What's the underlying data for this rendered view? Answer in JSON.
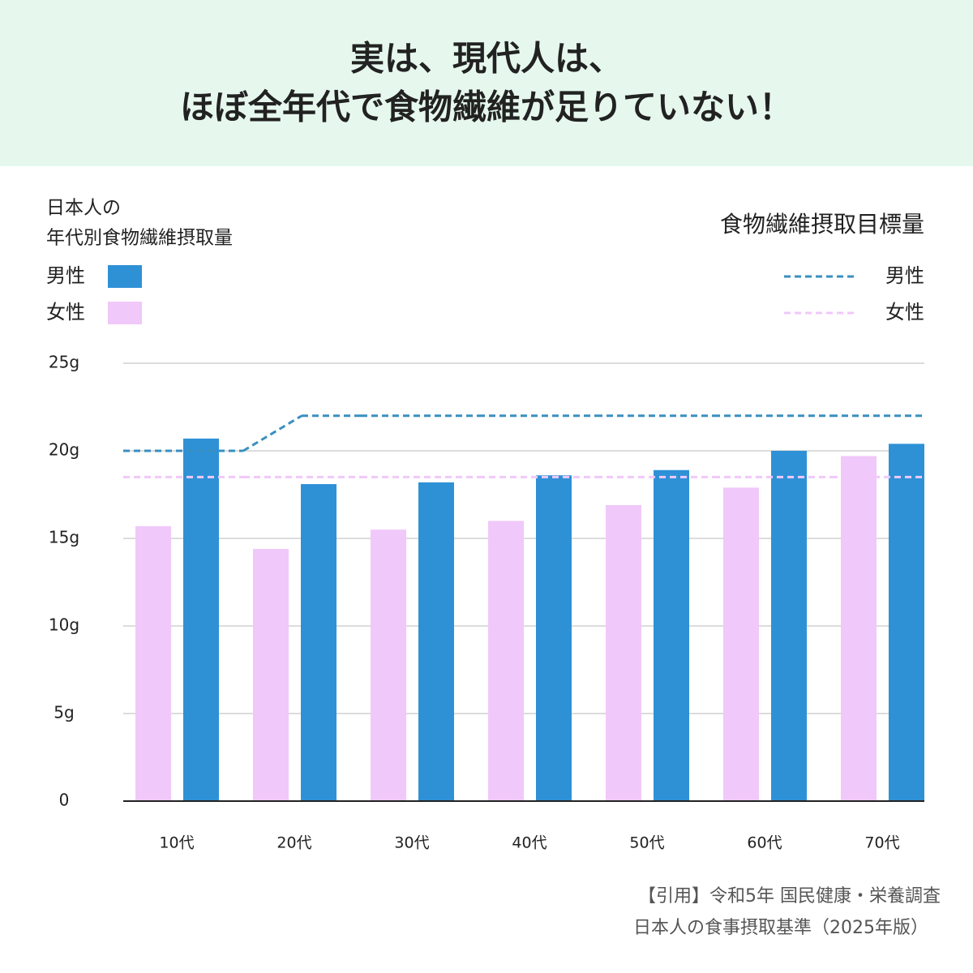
{
  "chart_data": {
    "type": "bar",
    "title": [
      "実は、現代人は、",
      "ほぼ全年代で食物繊維が足りていない！"
    ],
    "legend_title": [
      "日本人の",
      "年代別食物繊維摂取量"
    ],
    "categories": [
      "10代",
      "20代",
      "30代",
      "40代",
      "50代",
      "60代",
      "70代"
    ],
    "series": [
      {
        "name": "男性",
        "color": "#2e91d6",
        "values": [
          20.7,
          18.1,
          18.2,
          18.6,
          18.9,
          20.0,
          20.4
        ]
      },
      {
        "name": "女性",
        "color": "#f0c8fa",
        "values": [
          15.7,
          14.4,
          15.5,
          16.0,
          16.9,
          17.9,
          19.7
        ]
      }
    ],
    "targets": {
      "title": "食物繊維摂取目標量",
      "series": [
        {
          "name": "男性",
          "color": "#3a8fc0",
          "values": [
            20,
            22,
            22,
            22,
            22,
            22,
            22
          ]
        },
        {
          "name": "女性",
          "color": "#f0c8fa",
          "values": [
            18.5,
            18.5,
            18.5,
            18.5,
            18.5,
            18.5,
            18.5
          ]
        }
      ]
    },
    "ylim": [
      0,
      25
    ],
    "yticks": [
      0,
      {
        "value": 5,
        "label": "5g"
      },
      {
        "value": 10,
        "label": "10g"
      },
      {
        "value": 15,
        "label": "15g"
      },
      {
        "value": 20,
        "label": "20g"
      },
      {
        "value": 25,
        "label": "25g"
      }
    ],
    "grid": true,
    "source": [
      "【引用】令和5年 国民健康・栄養調査",
      "日本人の食事摂取基準（2025年版）"
    ]
  }
}
